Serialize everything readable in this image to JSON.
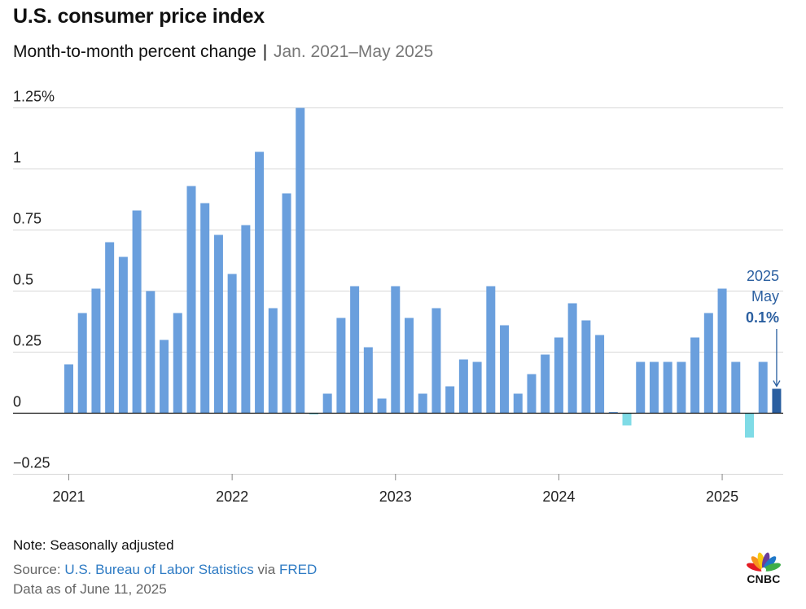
{
  "header": {
    "title": "U.S. consumer price index",
    "subtitle_main": "Month-to-month percent change",
    "subtitle_sep": "|",
    "subtitle_range": "Jan. 2021–May 2025"
  },
  "footer": {
    "note": "Note: Seasonally adjusted",
    "source_prefix": "Source: ",
    "source_link1": "U.S. Bureau of Labor Statistics",
    "source_via": " via ",
    "source_link2": "FRED",
    "as_of": "Data as of June 11, 2025"
  },
  "logo": {
    "text": "CNBC",
    "icon": "nbc-peacock-icon"
  },
  "colors": {
    "bar": "#6a9fdd",
    "negative_bar": "#7fdbe6",
    "highlight_bar": "#2b5fa0",
    "annotation": "#2b5fa0",
    "grid": "#d8d8d8",
    "baseline": "#111111"
  },
  "chart_data": {
    "type": "bar",
    "title": "U.S. consumer price index",
    "subtitle": "Month-to-month percent change",
    "ylim": [
      -0.25,
      1.25
    ],
    "y_ticks": [
      -0.25,
      0,
      0.25,
      0.5,
      0.75,
      1,
      1.25
    ],
    "y_tick_labels": [
      "−0.25",
      "0",
      "0.25",
      "0.5",
      "0.75",
      "1",
      "1.25%"
    ],
    "x_tick_labels": [
      "2021",
      "2022",
      "2023",
      "2024",
      "2025"
    ],
    "grid": true,
    "start": "2021-01",
    "end": "2025-05",
    "values": [
      0.2,
      0.41,
      0.51,
      0.7,
      0.64,
      0.83,
      0.5,
      0.3,
      0.41,
      0.93,
      0.86,
      0.73,
      0.57,
      0.77,
      1.07,
      0.43,
      0.9,
      1.25,
      -0.005,
      0.08,
      0.39,
      0.52,
      0.27,
      0.06,
      0.52,
      0.39,
      0.08,
      0.43,
      0.11,
      0.22,
      0.21,
      0.52,
      0.36,
      0.08,
      0.16,
      0.24,
      0.31,
      0.45,
      0.38,
      0.32,
      0.005,
      -0.05,
      0.21,
      0.21,
      0.21,
      0.21,
      0.31,
      0.41,
      0.51,
      0.21,
      -0.1,
      0.21,
      0.1
    ],
    "annotation": {
      "year": "2025",
      "month": "May",
      "value": "0.1%"
    }
  }
}
